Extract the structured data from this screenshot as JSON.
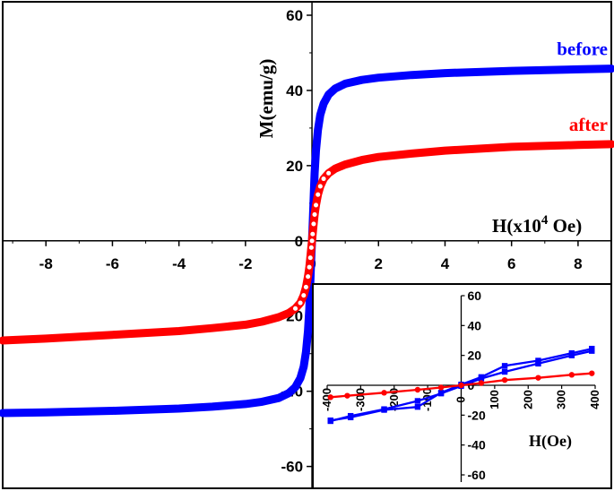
{
  "chart_data": [
    {
      "type": "line",
      "subtype": "hysteresis-loop",
      "title": "",
      "xlabel": "H(x10",
      "xlabel_exp": "4",
      "xlabel_unit": " Oe)",
      "ylabel": "M(emu/g)",
      "xlim": [
        -9.3,
        9.0
      ],
      "ylim": [
        -62,
        60
      ],
      "xticks": [
        -8,
        -6,
        -4,
        -2,
        0,
        2,
        4,
        6,
        8
      ],
      "yticks": [
        -60,
        -40,
        -20,
        0,
        20,
        40,
        60
      ],
      "xtick_labels": [
        "-8",
        "-6",
        "-4",
        "-2",
        "0",
        "2",
        "4",
        "6",
        "8"
      ],
      "ytick_labels": [
        "-60",
        "-40",
        "-20",
        "0",
        "20",
        "40",
        "60"
      ],
      "axes": "centered-cross",
      "grid": false,
      "legend": "inline labels at right end of curves",
      "series": [
        {
          "name": "before",
          "color": "#0000ff",
          "marker": "filled-square",
          "x": [
            -9.3,
            -8,
            -6,
            -4,
            -3,
            -2,
            -1.5,
            -1,
            -0.7,
            -0.5,
            -0.35,
            -0.25,
            -0.18,
            -0.12,
            -0.08,
            -0.05,
            -0.02,
            0,
            0.02,
            0.05,
            0.08,
            0.12,
            0.18,
            0.25,
            0.35,
            0.5,
            0.7,
            1,
            1.5,
            2,
            3,
            4,
            6,
            8,
            9
          ],
          "y": [
            -45.8,
            -45.6,
            -45.2,
            -44.6,
            -44.1,
            -43.4,
            -42.8,
            -41.8,
            -40.5,
            -38.9,
            -36.5,
            -33.5,
            -29.5,
            -24,
            -18,
            -11,
            -4,
            0,
            4,
            11,
            18,
            24,
            29.5,
            33.5,
            36.5,
            38.9,
            40.5,
            41.8,
            42.8,
            43.4,
            44.1,
            44.6,
            45.2,
            45.6,
            45.8
          ]
        },
        {
          "name": "after",
          "color": "#ff0000",
          "marker": "open-circle",
          "x": [
            -9.3,
            -8,
            -6,
            -4,
            -3,
            -2,
            -1.5,
            -1,
            -0.7,
            -0.5,
            -0.35,
            -0.25,
            -0.18,
            -0.12,
            -0.08,
            -0.05,
            -0.02,
            0,
            0.02,
            0.05,
            0.08,
            0.12,
            0.18,
            0.25,
            0.35,
            0.5,
            0.7,
            1,
            1.5,
            2,
            3,
            4,
            6,
            8,
            9
          ],
          "y": [
            -26.5,
            -26,
            -25,
            -24,
            -23.2,
            -22.3,
            -21.5,
            -20.3,
            -19.2,
            -18,
            -16.5,
            -14.5,
            -12.3,
            -9.5,
            -7,
            -4.5,
            -1.8,
            0,
            1.8,
            4.5,
            7,
            9.5,
            12.3,
            14.5,
            16.5,
            18,
            19.2,
            20.3,
            21.5,
            22.3,
            23.2,
            24,
            25,
            25.5,
            25.7
          ]
        }
      ]
    },
    {
      "type": "line",
      "subtype": "hysteresis-loop-inset",
      "title": "",
      "xlabel": "H(Oe)",
      "ylabel": "",
      "xlim": [
        -400,
        400
      ],
      "ylim": [
        -60,
        60
      ],
      "xticks": [
        -400,
        -300,
        -200,
        -100,
        0,
        100,
        200,
        300,
        400
      ],
      "yticks": [
        -60,
        -40,
        -20,
        0,
        20,
        40,
        60
      ],
      "xtick_labels": [
        "-400",
        "-300",
        "-200",
        "-100",
        "0",
        "100",
        "200",
        "300",
        "400"
      ],
      "ytick_labels": [
        "-60",
        "-40",
        "-20",
        "0",
        "20",
        "40",
        "60"
      ],
      "grid": false,
      "series": [
        {
          "name": "before",
          "color": "#0000ff",
          "marker": "filled-square",
          "branches": [
            {
              "x": [
                -390,
                -330,
                -230,
                -130,
                -60,
                0,
                60,
                130,
                230,
                330,
                390
              ],
              "y": [
                -24,
                -20.5,
                -16,
                -10.5,
                -5.5,
                -0.5,
                4.5,
                9,
                14.5,
                20,
                23
              ]
            },
            {
              "x": [
                390,
                330,
                230,
                130,
                60,
                0,
                -60,
                -130,
                -230,
                -330,
                -390
              ],
              "y": [
                24.5,
                21.5,
                16.5,
                13,
                5.5,
                0.5,
                -5,
                -14.5,
                -16.5,
                -21.5,
                -23.5
              ]
            }
          ]
        },
        {
          "name": "after",
          "color": "#ff0000",
          "marker": "filled-circle",
          "branches": [
            {
              "x": [
                -390,
                -340,
                -230,
                -130,
                -60,
                0,
                60,
                130,
                230,
                330,
                390
              ],
              "y": [
                -8,
                -7,
                -5,
                -3,
                -1.5,
                0,
                1.5,
                3.5,
                5,
                7,
                8
              ]
            }
          ]
        }
      ]
    }
  ]
}
